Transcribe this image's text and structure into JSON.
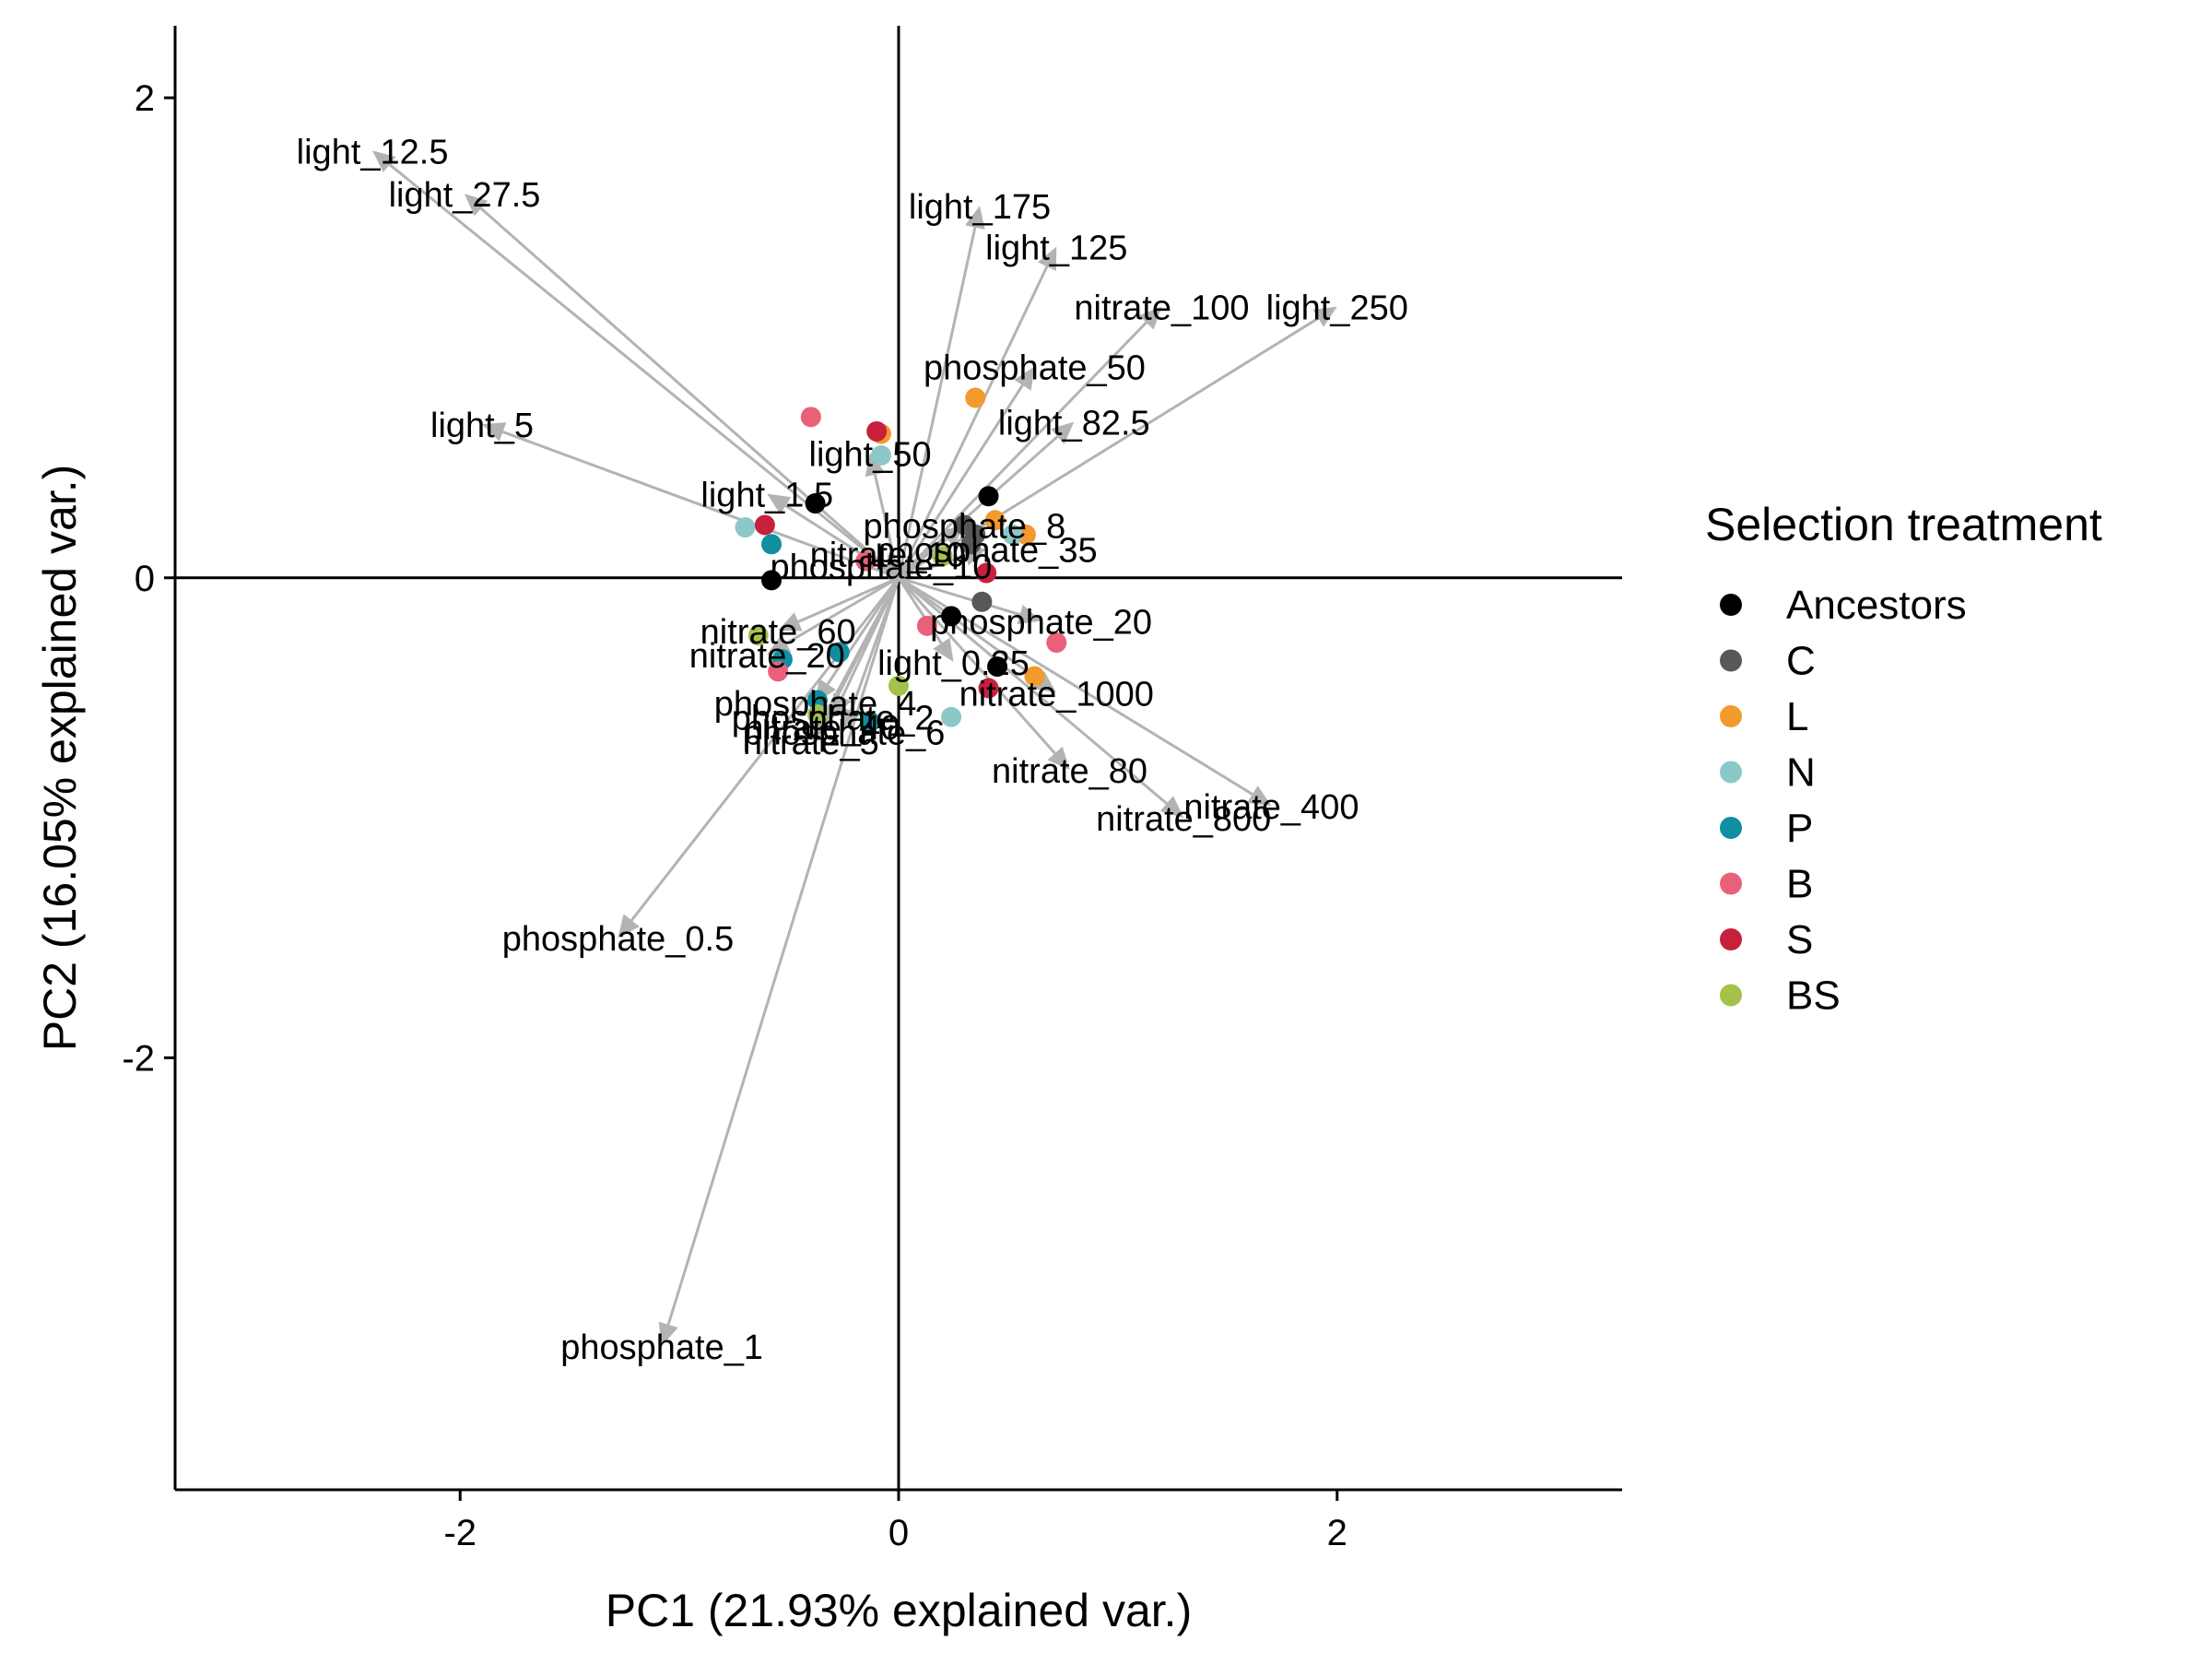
{
  "chart_data": {
    "type": "scatter",
    "subtype": "pca-biplot",
    "title": "",
    "xlabel": "PC1 (21.93% explained var.)",
    "ylabel": "PC2 (16.05% explained var.)",
    "xlim": [
      -3.3,
      3.3
    ],
    "ylim": [
      -3.8,
      2.3
    ],
    "xticks": [
      -2,
      0,
      2
    ],
    "yticks": [
      -2,
      0,
      2
    ],
    "zero_lines": true,
    "grid": false,
    "arrow_color": "#b3b3b3",
    "legend": {
      "title": "Selection treatment",
      "placement": "right",
      "entries": [
        {
          "label": "Ancestors",
          "color": "#000000"
        },
        {
          "label": "C",
          "color": "#585858"
        },
        {
          "label": "L",
          "color": "#f39a2c"
        },
        {
          "label": "N",
          "color": "#8cc8c8"
        },
        {
          "label": "P",
          "color": "#108fa0"
        },
        {
          "label": "B",
          "color": "#e96079"
        },
        {
          "label": "S",
          "color": "#c7203d"
        },
        {
          "label": "BS",
          "color": "#a4c14a"
        }
      ]
    },
    "loadings": [
      {
        "name": "light_12.5",
        "x": -2.4,
        "y": 1.78
      },
      {
        "name": "light_27.5",
        "x": -1.98,
        "y": 1.6
      },
      {
        "name": "light_5",
        "x": -1.9,
        "y": 0.64
      },
      {
        "name": "light_1.5",
        "x": -0.6,
        "y": 0.35
      },
      {
        "name": "light_50",
        "x": -0.13,
        "y": 0.52
      },
      {
        "name": "light_175",
        "x": 0.37,
        "y": 1.55
      },
      {
        "name": "light_125",
        "x": 0.72,
        "y": 1.38
      },
      {
        "name": "nitrate_100",
        "x": 1.2,
        "y": 1.13
      },
      {
        "name": "light_250",
        "x": 2.0,
        "y": 1.13
      },
      {
        "name": "phosphate_50",
        "x": 0.62,
        "y": 0.88
      },
      {
        "name": "light_82.5",
        "x": 0.8,
        "y": 0.65
      },
      {
        "name": "phosphate_8",
        "x": 0.3,
        "y": 0.22
      },
      {
        "name": "phosphate_35",
        "x": 0.4,
        "y": 0.12
      },
      {
        "name": "nitrate_10",
        "x": -0.05,
        "y": 0.1
      },
      {
        "name": "phosphate_10",
        "x": -0.08,
        "y": 0.05
      },
      {
        "name": "phosphate_20",
        "x": 0.65,
        "y": -0.18
      },
      {
        "name": "nitrate_60",
        "x": -0.55,
        "y": -0.22
      },
      {
        "name": "nitrate_20",
        "x": -0.6,
        "y": -0.32
      },
      {
        "name": "light_0.25",
        "x": 0.25,
        "y": -0.35
      },
      {
        "name": "nitrate_1000",
        "x": 0.72,
        "y": -0.48
      },
      {
        "name": "phosphate_4",
        "x": -0.38,
        "y": -0.52
      },
      {
        "name": "phosphate_2",
        "x": -0.3,
        "y": -0.58
      },
      {
        "name": "phosphate_6",
        "x": -0.25,
        "y": -0.64
      },
      {
        "name": "nitrate_40",
        "x": -0.35,
        "y": -0.62
      },
      {
        "name": "nitrate_5",
        "x": -0.4,
        "y": -0.68
      },
      {
        "name": "nitrate_80",
        "x": 0.78,
        "y": -0.8
      },
      {
        "name": "nitrate_400",
        "x": 1.7,
        "y": -0.95
      },
      {
        "name": "nitrate_800",
        "x": 1.3,
        "y": -1.0
      },
      {
        "name": "phosphate_0.5",
        "x": -1.28,
        "y": -1.5
      },
      {
        "name": "phosphate_1",
        "x": -1.08,
        "y": -3.2
      }
    ],
    "points": [
      {
        "group": "Ancestors",
        "x": -0.38,
        "y": 0.31
      },
      {
        "group": "Ancestors",
        "x": -0.58,
        "y": -0.01
      },
      {
        "group": "Ancestors",
        "x": 0.41,
        "y": 0.34
      },
      {
        "group": "Ancestors",
        "x": 0.24,
        "y": -0.16
      },
      {
        "group": "Ancestors",
        "x": 0.45,
        "y": -0.37
      },
      {
        "group": "C",
        "x": 0.3,
        "y": 0.22
      },
      {
        "group": "C",
        "x": 0.35,
        "y": 0.18
      },
      {
        "group": "C",
        "x": 0.33,
        "y": 0.14
      },
      {
        "group": "C",
        "x": 0.38,
        "y": -0.1
      },
      {
        "group": "L",
        "x": 0.35,
        "y": 0.75
      },
      {
        "group": "L",
        "x": -0.08,
        "y": 0.6
      },
      {
        "group": "L",
        "x": 0.44,
        "y": 0.24
      },
      {
        "group": "L",
        "x": 0.58,
        "y": 0.18
      },
      {
        "group": "L",
        "x": 0.62,
        "y": -0.41
      },
      {
        "group": "N",
        "x": -0.08,
        "y": 0.51
      },
      {
        "group": "N",
        "x": -0.7,
        "y": 0.21
      },
      {
        "group": "N",
        "x": 0.24,
        "y": -0.58
      },
      {
        "group": "N",
        "x": 0.52,
        "y": 0.18
      },
      {
        "group": "P",
        "x": -0.58,
        "y": 0.14
      },
      {
        "group": "P",
        "x": -0.53,
        "y": -0.34
      },
      {
        "group": "P",
        "x": -0.27,
        "y": -0.31
      },
      {
        "group": "P",
        "x": -0.37,
        "y": -0.51
      },
      {
        "group": "P",
        "x": -0.13,
        "y": -0.6
      },
      {
        "group": "B",
        "x": -0.4,
        "y": 0.67
      },
      {
        "group": "B",
        "x": -0.15,
        "y": 0.07
      },
      {
        "group": "B",
        "x": 0.13,
        "y": -0.2
      },
      {
        "group": "B",
        "x": -0.55,
        "y": -0.39
      },
      {
        "group": "B",
        "x": 0.72,
        "y": -0.27
      },
      {
        "group": "S",
        "x": -0.1,
        "y": 0.61
      },
      {
        "group": "S",
        "x": -0.61,
        "y": 0.22
      },
      {
        "group": "S",
        "x": 0.4,
        "y": 0.02
      },
      {
        "group": "S",
        "x": 0.41,
        "y": -0.46
      },
      {
        "group": "BS",
        "x": 0.2,
        "y": 0.09
      },
      {
        "group": "BS",
        "x": -0.64,
        "y": -0.24
      },
      {
        "group": "BS",
        "x": 0.0,
        "y": -0.45
      },
      {
        "group": "BS",
        "x": -0.37,
        "y": -0.57
      }
    ]
  }
}
